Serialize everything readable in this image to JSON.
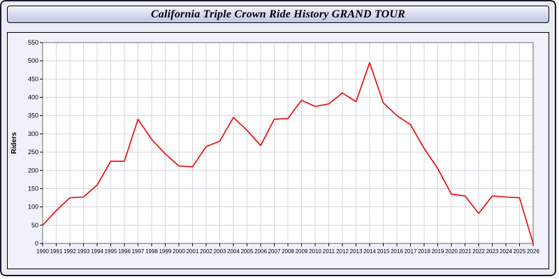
{
  "title": "California Triple Crown Ride History GRAND TOUR",
  "colors": {
    "line": "#ee0000",
    "grid": "#d4d4de",
    "plot_bg": "#ffffff",
    "panel_bg": "#f0f1fa",
    "frame": "#6a6a6a"
  },
  "chart_data": {
    "type": "line",
    "title": "California Triple Crown Ride History GRAND TOUR",
    "xlabel": "",
    "ylabel": "Riders",
    "ylim": [
      0,
      550
    ],
    "ytick_step": 50,
    "grid": true,
    "legend_position": "none",
    "x": [
      1990,
      1991,
      1992,
      1993,
      1994,
      1995,
      1996,
      1997,
      1998,
      1999,
      2000,
      2001,
      2002,
      2003,
      2004,
      2005,
      2006,
      2007,
      2008,
      2009,
      2010,
      2011,
      2012,
      2013,
      2014,
      2015,
      2016,
      2017,
      2018,
      2019,
      2020,
      2021,
      2022,
      2023,
      2024,
      2025,
      2026
    ],
    "series": [
      {
        "name": "Riders",
        "color": "#ee0000",
        "values": [
          50,
          90,
          125,
          127,
          160,
          225,
          225,
          340,
          285,
          245,
          212,
          210,
          265,
          280,
          345,
          310,
          268,
          340,
          342,
          392,
          375,
          382,
          412,
          388,
          495,
          385,
          350,
          325,
          260,
          205,
          135,
          130,
          82,
          130,
          127,
          125,
          0
        ]
      }
    ]
  }
}
